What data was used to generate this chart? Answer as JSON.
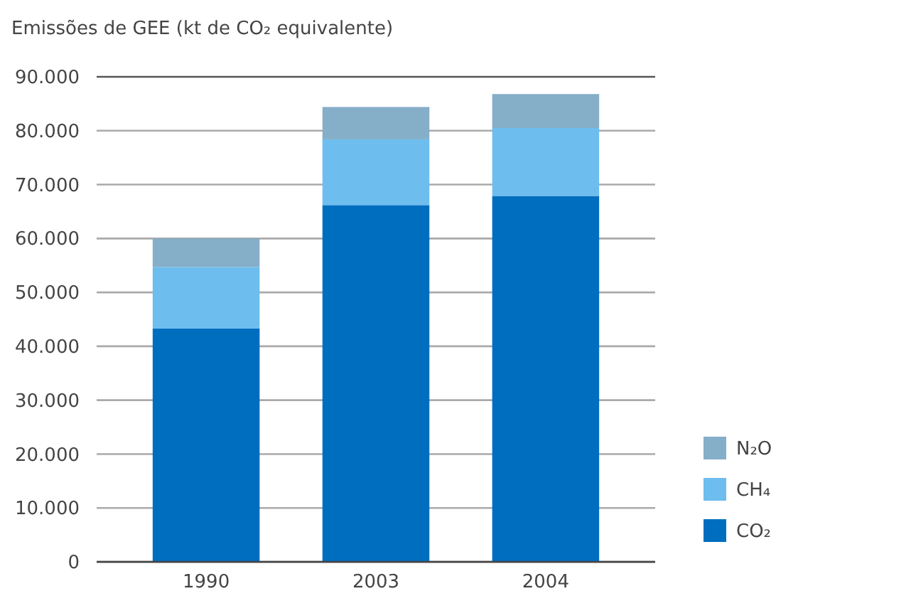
{
  "chart_data": {
    "type": "bar",
    "title": "Emissões de GEE (kt de CO₂ equivalente)",
    "categories": [
      "1990",
      "2003",
      "2004"
    ],
    "stacked": true,
    "series": [
      {
        "name": "CO₂",
        "color": "#006ebf",
        "values": [
          43300,
          66200,
          67900
        ]
      },
      {
        "name": "CH₄",
        "color": "#6dbdee",
        "values": [
          11400,
          12200,
          12600
        ]
      },
      {
        "name": "N₂O",
        "color": "#85aec8",
        "values": [
          5300,
          6000,
          6300
        ]
      }
    ],
    "ylim": [
      0,
      90000
    ],
    "yticks": [
      0,
      {
        "value": 10000,
        "label": "10.000"
      },
      {
        "value": 20000,
        "label": "20.000"
      },
      {
        "value": 30000,
        "label": "30.000"
      },
      {
        "value": 40000,
        "label": "40.000"
      },
      {
        "value": 50000,
        "label": "50.000"
      },
      {
        "value": 60000,
        "label": "60.000"
      },
      {
        "value": 70000,
        "label": "70.000"
      },
      {
        "value": 80000,
        "label": "80.000"
      },
      {
        "value": 90000,
        "label": "90.000"
      }
    ],
    "grid": "y",
    "legend": "bottom right"
  }
}
